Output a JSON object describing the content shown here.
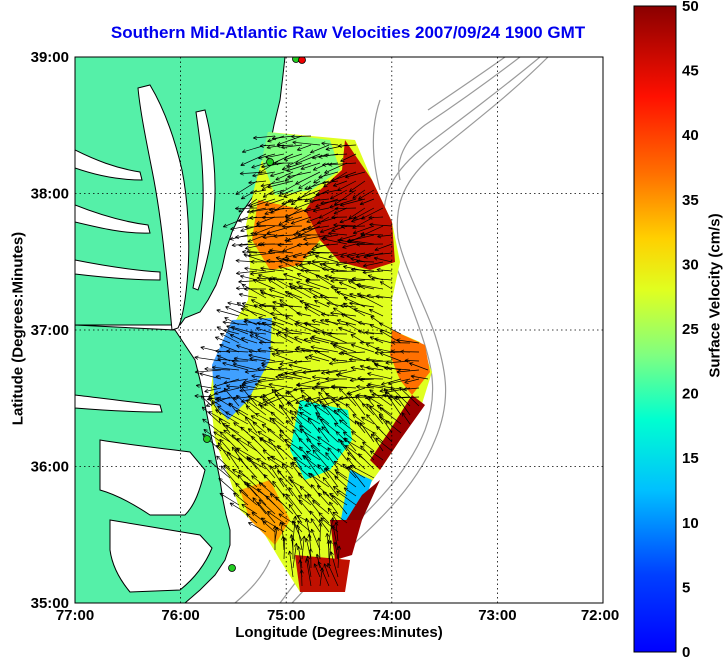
{
  "title": "Southern Mid-Atlantic Raw Velocities 2007/09/24 1900 GMT",
  "xaxis": {
    "label": "Longitude (Degrees:Minutes)",
    "ticks": [
      "77:00",
      "76:00",
      "75:00",
      "74:00",
      "73:00",
      "72:00"
    ]
  },
  "yaxis": {
    "label": "Latitude (Degrees:Minutes)",
    "ticks": [
      "39:00",
      "38:00",
      "37:00",
      "36:00",
      "35:00"
    ]
  },
  "colorbar": {
    "label": "Surface Velocity (cm/s)",
    "ticks": [
      "50",
      "45",
      "40",
      "35",
      "30",
      "25",
      "20",
      "15",
      "10",
      "5",
      "0"
    ],
    "range": [
      0,
      50
    ],
    "colormap": "jet"
  },
  "colors": {
    "land": "#55f0a8",
    "water": "#ffffff",
    "coastline": "#000000",
    "bathymetry": "#9a9a9a",
    "grid": "#000000",
    "title": "#0000ee"
  },
  "map": {
    "lon_range": [
      -77,
      -72
    ],
    "lat_range": [
      35,
      39
    ],
    "grid": "dotted",
    "vectors": "black arrows over shaded speed field"
  }
}
